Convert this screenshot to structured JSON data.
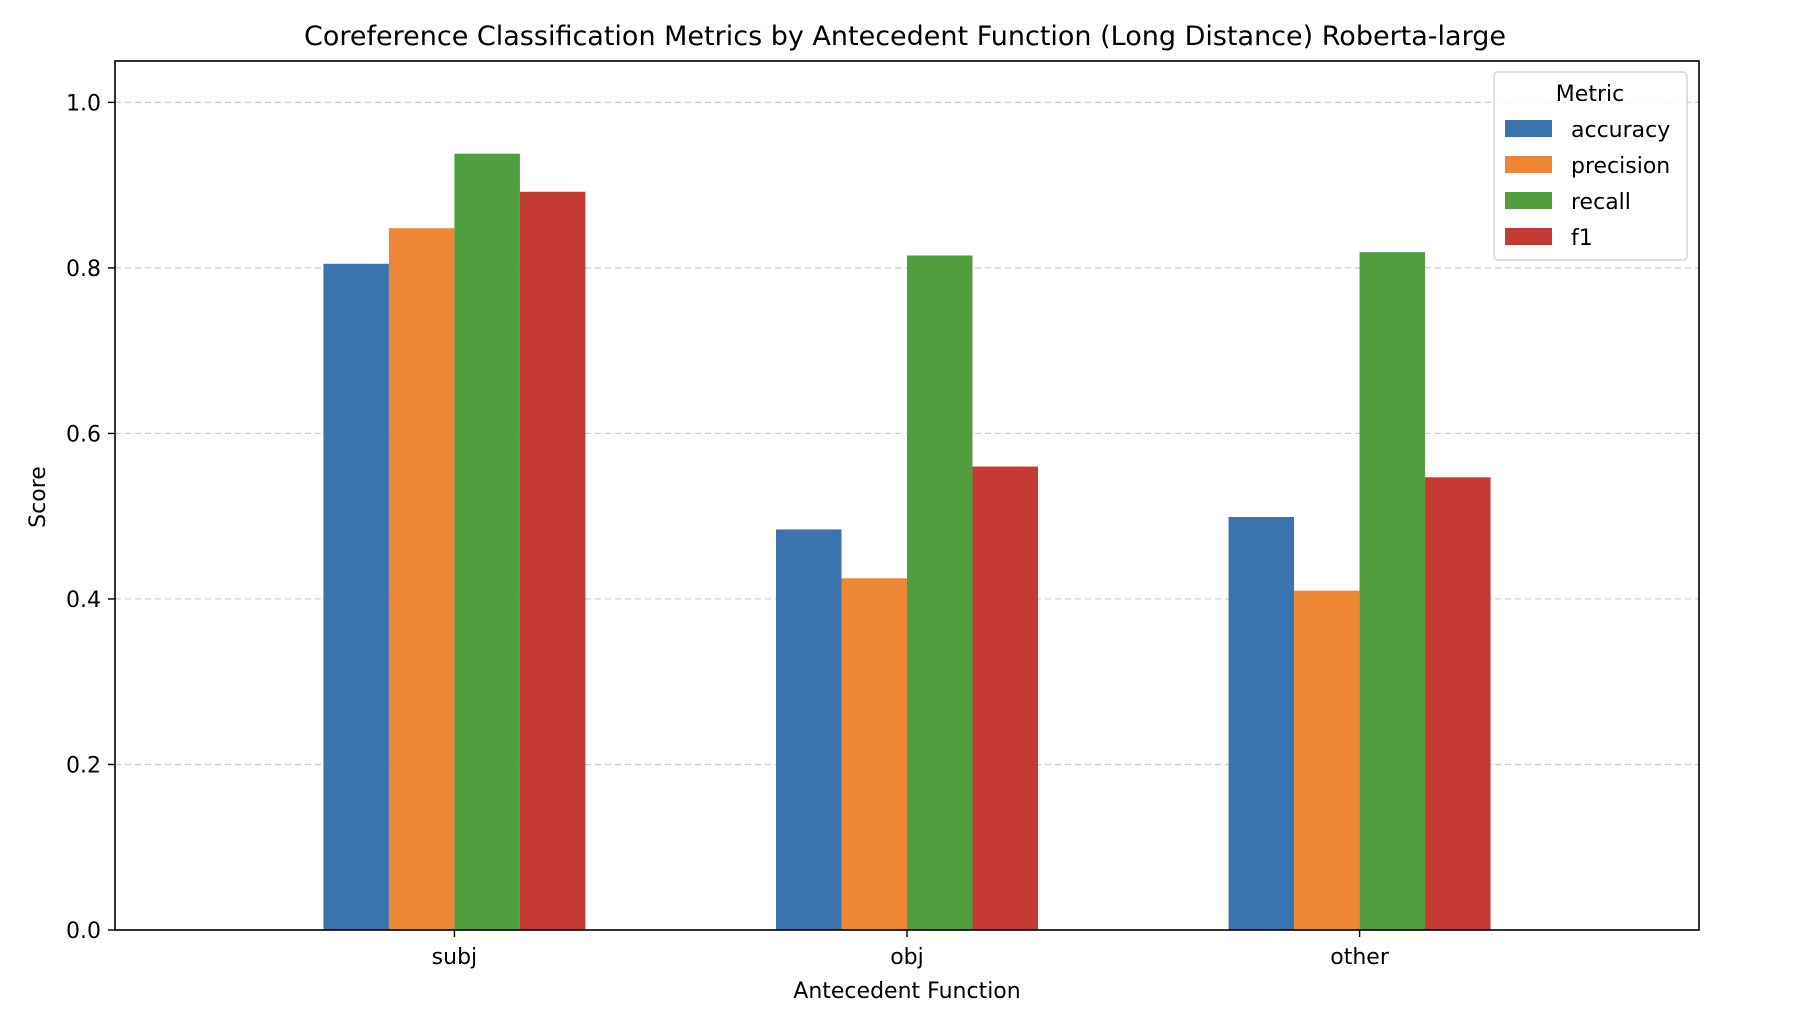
{
  "chart_data": {
    "type": "bar",
    "title": "Coreference Classification Metrics by Antecedent Function (Long Distance)  Roberta-large",
    "xlabel": "Antecedent Function",
    "ylabel": "Score",
    "categories": [
      "subj",
      "obj",
      "other"
    ],
    "ylim": [
      0,
      1.05
    ],
    "yticks": [
      0.0,
      0.2,
      0.4,
      0.6,
      0.8,
      1.0
    ],
    "ytick_labels": [
      "0.0",
      "0.2",
      "0.4",
      "0.6",
      "0.8",
      "1.0"
    ],
    "grid": "y dashed",
    "legend": {
      "title": "Metric",
      "placement": "top-right"
    },
    "series": [
      {
        "name": "accuracy",
        "color": "#3a73ae",
        "values": [
          0.805,
          0.484,
          0.499
        ]
      },
      {
        "name": "precision",
        "color": "#ee8735",
        "values": [
          0.848,
          0.425,
          0.41
        ]
      },
      {
        "name": "recall",
        "color": "#519e3e",
        "values": [
          0.938,
          0.815,
          0.819
        ]
      },
      {
        "name": "f1",
        "color": "#c53a32",
        "values": [
          0.892,
          0.56,
          0.547
        ]
      }
    ]
  }
}
